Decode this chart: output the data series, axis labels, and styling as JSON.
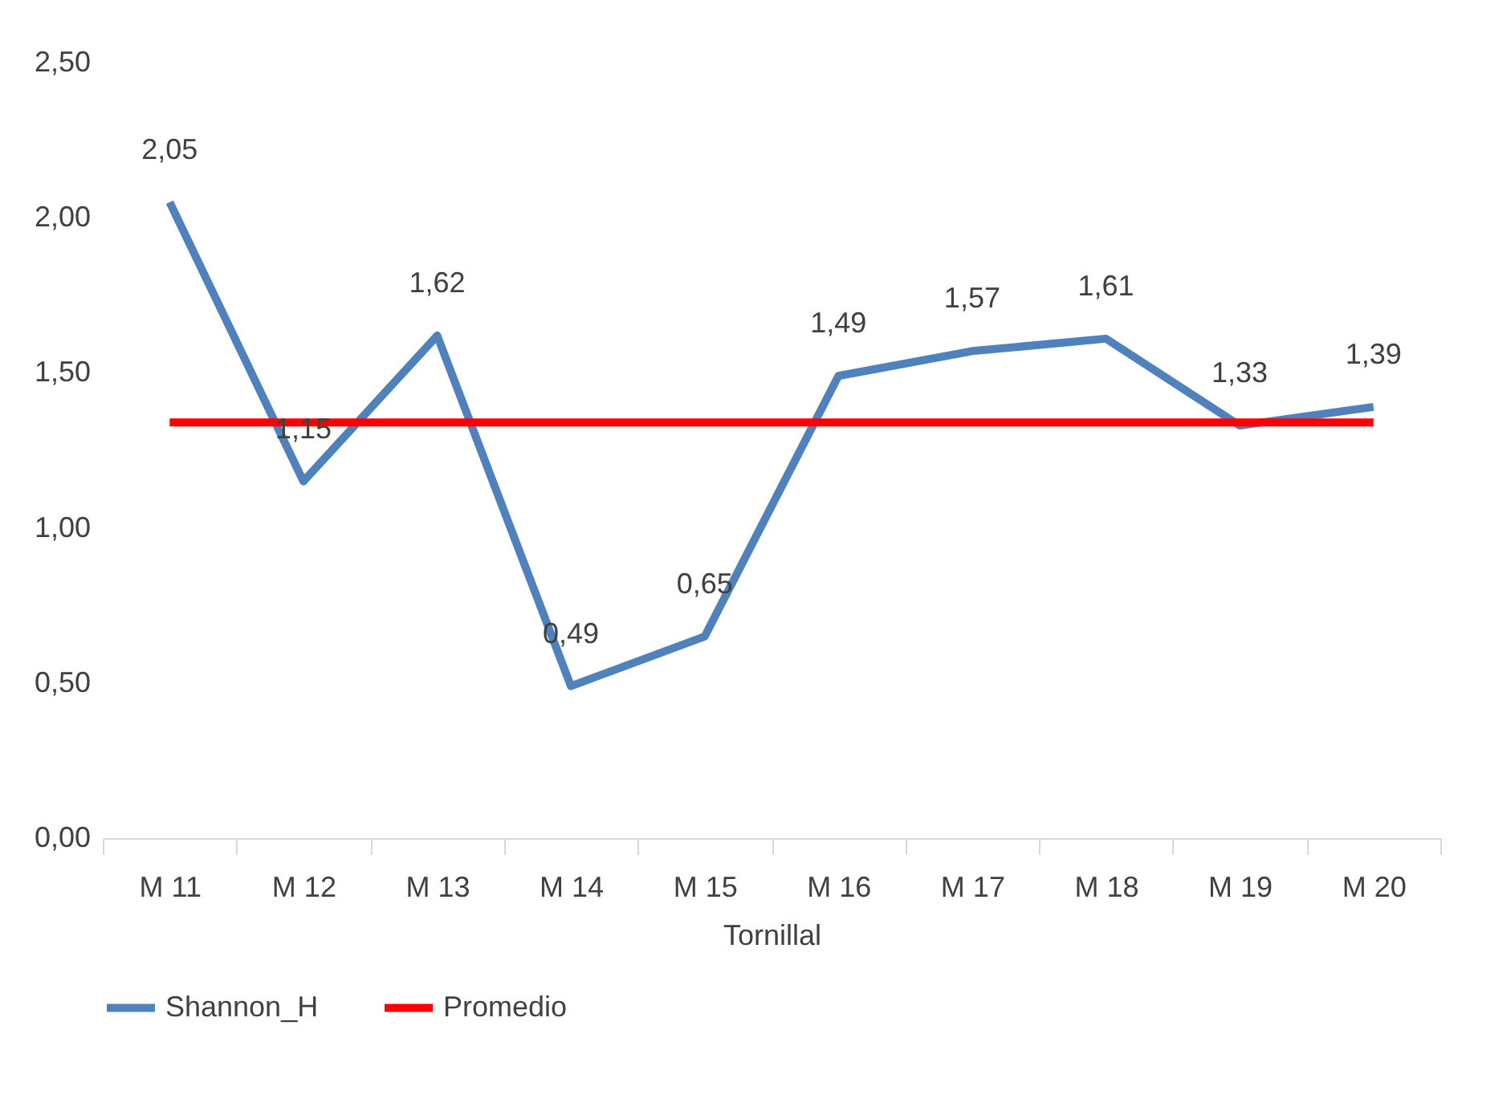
{
  "chart_data": {
    "type": "line",
    "xlabel": "Tornillal",
    "categories": [
      "M 11",
      "M 12",
      "M 13",
      "M 14",
      "M 15",
      "M 16",
      "M 17",
      "M 18",
      "M 19",
      "M 20"
    ],
    "series": [
      {
        "name": "Shannon_H",
        "color": "#4f81bd",
        "values": [
          2.05,
          1.15,
          1.62,
          0.49,
          0.65,
          1.49,
          1.57,
          1.61,
          1.33,
          1.39
        ],
        "value_labels": [
          "2,05",
          "1,15",
          "1,62",
          "0,49",
          "0,65",
          "1,49",
          "1,57",
          "1,61",
          "1,33",
          "1,39"
        ]
      },
      {
        "name": "Promedio",
        "color": "#ff0000",
        "values": [
          1.34,
          1.34,
          1.34,
          1.34,
          1.34,
          1.34,
          1.34,
          1.34,
          1.34,
          1.34
        ]
      }
    ],
    "ylim": [
      0,
      2.5
    ],
    "yticks": [
      {
        "value": 0,
        "label": "0,00"
      },
      {
        "value": 0.5,
        "label": "0,50"
      },
      {
        "value": 1,
        "label": "1,00"
      },
      {
        "value": 1.5,
        "label": "1,50"
      },
      {
        "value": 2,
        "label": "2,00"
      },
      {
        "value": 2.5,
        "label": "2,50"
      }
    ],
    "grid": false,
    "legend": "bottom",
    "marker": "none",
    "line_style": "solid"
  }
}
